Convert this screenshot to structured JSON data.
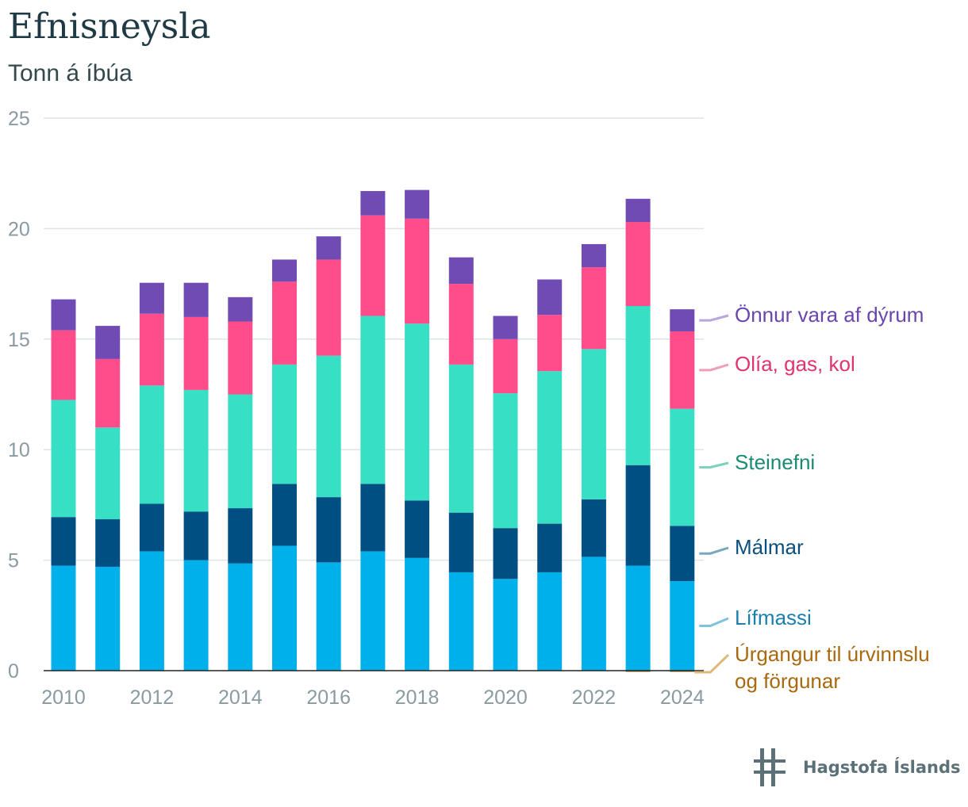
{
  "chart_data": {
    "type": "bar",
    "stacked": true,
    "title": "Efnisneysla",
    "subtitle": "Tonn á íbúa",
    "categories": [
      "2010",
      "2011",
      "2012",
      "2013",
      "2014",
      "2015",
      "2016",
      "2017",
      "2018",
      "2019",
      "2020",
      "2021",
      "2022",
      "2023",
      "2024"
    ],
    "x_tick_labels": [
      "2010",
      "2012",
      "2014",
      "2016",
      "2018",
      "2020",
      "2022",
      "2024"
    ],
    "y_ticks": [
      "0",
      "5",
      "10",
      "15",
      "20",
      "25"
    ],
    "ylim": [
      0,
      25
    ],
    "grid": true,
    "legend_placement": "right, inline labels",
    "series": [
      {
        "name": "Úrgangur til úrvinnslu og förgunar",
        "label_lines": [
          "Úrgangur til úrvinnslu",
          "og förgunar"
        ],
        "color": "#a8690f",
        "line_color": "#e0b97a",
        "values": [
          0,
          0,
          0,
          0,
          0,
          0,
          0,
          0,
          0,
          0,
          0,
          0,
          0,
          -0.05,
          -0.05
        ]
      },
      {
        "name": "Lífmassi",
        "label_lines": [
          "Lífmassi"
        ],
        "color": "#00b0eb",
        "text_color": "#1a7fae",
        "line_color": "#7ec3dd",
        "values": [
          4.75,
          4.7,
          5.4,
          5.0,
          4.85,
          5.65,
          4.9,
          5.4,
          5.1,
          4.45,
          4.15,
          4.45,
          5.15,
          4.75,
          4.05
        ]
      },
      {
        "name": "Málmar",
        "label_lines": [
          "Málmar"
        ],
        "color": "#004f83",
        "text_color": "#0a4f7d",
        "line_color": "#7aa5bf",
        "values": [
          2.2,
          2.15,
          2.15,
          2.2,
          2.5,
          2.8,
          2.95,
          3.05,
          2.6,
          2.7,
          2.3,
          2.2,
          2.6,
          4.55,
          2.5
        ]
      },
      {
        "name": "Steinefni",
        "label_lines": [
          "Steinefni"
        ],
        "color": "#37e0c5",
        "text_color": "#1b8a74",
        "line_color": "#7ed0bf",
        "values": [
          5.3,
          4.15,
          5.35,
          5.5,
          5.15,
          5.4,
          6.4,
          7.6,
          8.0,
          6.7,
          6.1,
          6.9,
          6.8,
          7.2,
          5.3
        ]
      },
      {
        "name": "Olía, gas, kol",
        "label_lines": [
          "Olía, gas, kol"
        ],
        "color": "#ff4c8b",
        "text_color": "#e1336f",
        "line_color": "#f29cbc",
        "values": [
          3.15,
          3.1,
          3.25,
          3.3,
          3.3,
          3.75,
          4.35,
          4.55,
          4.75,
          3.65,
          2.45,
          2.55,
          3.7,
          3.8,
          3.5
        ]
      },
      {
        "name": "Önnur vara af dýrum",
        "label_lines": [
          "Önnur vara af dýrum"
        ],
        "color": "#6f4bb3",
        "text_color": "#6a45ae",
        "line_color": "#b8a7dc",
        "values": [
          1.4,
          1.5,
          1.4,
          1.55,
          1.1,
          1.0,
          1.05,
          1.1,
          1.3,
          1.2,
          1.05,
          1.6,
          1.05,
          1.05,
          1.0
        ]
      }
    ]
  },
  "branding": {
    "logo_text": "Hagstofa Íslands",
    "logo_icon": "hagstofa-logo-icon"
  },
  "colors": {
    "grid": "#dde3e6",
    "axis_text": "#8a9aa1",
    "title": "#1f3a44",
    "baseline": "#222222"
  }
}
